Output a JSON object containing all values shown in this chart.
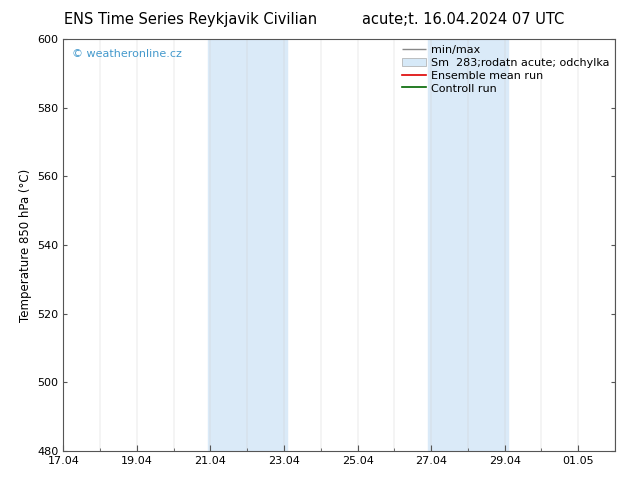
{
  "title_left": "ENS Time Series Reykjavik Civilian",
  "title_right": "acute;t. 16.04.2024 07 UTC",
  "ylabel": "Temperature 850 hPa (°C)",
  "ylim": [
    480,
    600
  ],
  "yticks": [
    480,
    500,
    520,
    540,
    560,
    580,
    600
  ],
  "xtick_labels": [
    "17.04",
    "19.04",
    "21.04",
    "23.04",
    "25.04",
    "27.04",
    "29.04",
    "01.05"
  ],
  "xtick_positions": [
    0,
    2,
    4,
    6,
    8,
    10,
    12,
    14
  ],
  "x_min": 0,
  "x_max": 15,
  "shade_bands": [
    {
      "x_start": 3.92,
      "x_end": 6.08
    },
    {
      "x_start": 9.92,
      "x_end": 12.08
    }
  ],
  "shade_color": "#daeaf8",
  "background_color": "#ffffff",
  "watermark": "© weatheronline.cz",
  "watermark_color": "#4499cc",
  "spine_color": "#555555",
  "tick_color": "#555555",
  "title_fontsize": 10.5,
  "axis_label_fontsize": 8.5,
  "tick_label_fontsize": 8.0,
  "legend_fontsize": 8.0
}
